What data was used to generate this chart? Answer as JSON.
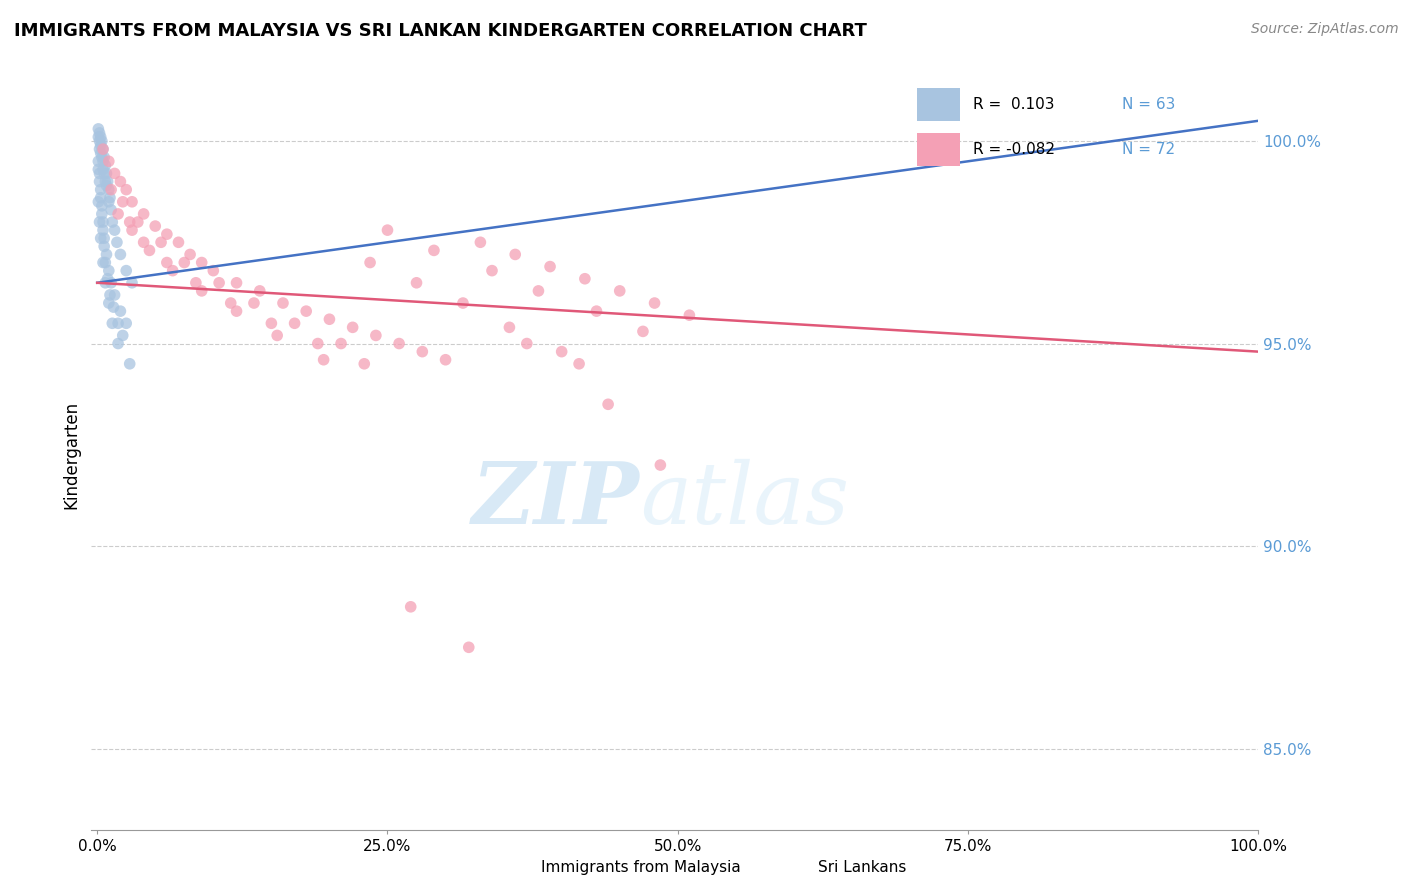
{
  "title": "IMMIGRANTS FROM MALAYSIA VS SRI LANKAN KINDERGARTEN CORRELATION CHART",
  "source": "Source: ZipAtlas.com",
  "ylabel": "Kindergarten",
  "yaxis_values": [
    85.0,
    90.0,
    95.0,
    100.0
  ],
  "xaxis_ticks": [
    0.0,
    25.0,
    50.0,
    75.0,
    100.0
  ],
  "blue_color": "#a8c4e0",
  "pink_color": "#f4a0b5",
  "blue_line_color": "#4472c4",
  "pink_line_color": "#e05878",
  "dot_size": 70,
  "blue_scatter_x": [
    0.1,
    0.1,
    0.2,
    0.2,
    0.2,
    0.3,
    0.3,
    0.3,
    0.4,
    0.4,
    0.5,
    0.5,
    0.5,
    0.6,
    0.6,
    0.7,
    0.7,
    0.8,
    0.8,
    0.9,
    1.0,
    1.0,
    1.1,
    1.2,
    1.3,
    1.5,
    1.7,
    2.0,
    2.5,
    3.0,
    0.1,
    0.2,
    0.3,
    0.4,
    0.5,
    0.6,
    0.8,
    1.0,
    1.2,
    1.5,
    2.0,
    2.5,
    0.1,
    0.2,
    0.3,
    0.4,
    0.5,
    0.6,
    0.7,
    0.9,
    1.1,
    1.4,
    1.8,
    2.2,
    0.1,
    0.2,
    0.3,
    0.5,
    0.7,
    1.0,
    1.3,
    1.8,
    2.8
  ],
  "blue_scatter_y": [
    100.3,
    100.1,
    100.2,
    100.0,
    99.8,
    100.1,
    99.9,
    99.7,
    100.0,
    99.6,
    99.8,
    99.5,
    99.3,
    99.6,
    99.2,
    99.4,
    99.0,
    99.2,
    98.9,
    99.0,
    98.8,
    98.5,
    98.6,
    98.3,
    98.0,
    97.8,
    97.5,
    97.2,
    96.8,
    96.5,
    99.5,
    99.2,
    98.8,
    98.4,
    98.0,
    97.6,
    97.2,
    96.8,
    96.5,
    96.2,
    95.8,
    95.5,
    99.3,
    99.0,
    98.6,
    98.2,
    97.8,
    97.4,
    97.0,
    96.6,
    96.2,
    95.9,
    95.5,
    95.2,
    98.5,
    98.0,
    97.6,
    97.0,
    96.5,
    96.0,
    95.5,
    95.0,
    94.5
  ],
  "pink_scatter_x": [
    0.5,
    1.0,
    1.5,
    2.0,
    2.5,
    3.0,
    4.0,
    5.0,
    6.0,
    7.0,
    8.0,
    9.0,
    10.0,
    12.0,
    14.0,
    16.0,
    18.0,
    20.0,
    22.0,
    24.0,
    26.0,
    28.0,
    30.0,
    33.0,
    36.0,
    39.0,
    42.0,
    45.0,
    48.0,
    51.0,
    1.2,
    2.2,
    3.5,
    5.5,
    7.5,
    10.5,
    13.5,
    17.0,
    21.0,
    25.0,
    29.0,
    34.0,
    38.0,
    43.0,
    47.0,
    1.8,
    3.0,
    4.5,
    6.5,
    9.0,
    12.0,
    15.5,
    19.5,
    23.5,
    27.5,
    31.5,
    35.5,
    40.0,
    44.0,
    48.5,
    2.8,
    4.0,
    6.0,
    8.5,
    11.5,
    15.0,
    19.0,
    23.0,
    27.0,
    32.0,
    37.0,
    41.5
  ],
  "pink_scatter_y": [
    99.8,
    99.5,
    99.2,
    99.0,
    98.8,
    98.5,
    98.2,
    97.9,
    97.7,
    97.5,
    97.2,
    97.0,
    96.8,
    96.5,
    96.3,
    96.0,
    95.8,
    95.6,
    95.4,
    95.2,
    95.0,
    94.8,
    94.6,
    97.5,
    97.2,
    96.9,
    96.6,
    96.3,
    96.0,
    95.7,
    98.8,
    98.5,
    98.0,
    97.5,
    97.0,
    96.5,
    96.0,
    95.5,
    95.0,
    97.8,
    97.3,
    96.8,
    96.3,
    95.8,
    95.3,
    98.2,
    97.8,
    97.3,
    96.8,
    96.3,
    95.8,
    95.2,
    94.6,
    97.0,
    96.5,
    96.0,
    95.4,
    94.8,
    93.5,
    92.0,
    98.0,
    97.5,
    97.0,
    96.5,
    96.0,
    95.5,
    95.0,
    94.5,
    88.5,
    87.5,
    95.0,
    94.5
  ],
  "watermark_zip": "ZIP",
  "watermark_atlas": "atlas",
  "ylim_min": 83.0,
  "ylim_max": 101.5,
  "xlim_min": -0.5,
  "xlim_max": 100.0,
  "blue_trendline_x": [
    0,
    100
  ],
  "blue_trendline_y_start": 96.5,
  "blue_trendline_y_end": 100.5,
  "pink_trendline_y_start": 96.5,
  "pink_trendline_y_end": 94.8
}
